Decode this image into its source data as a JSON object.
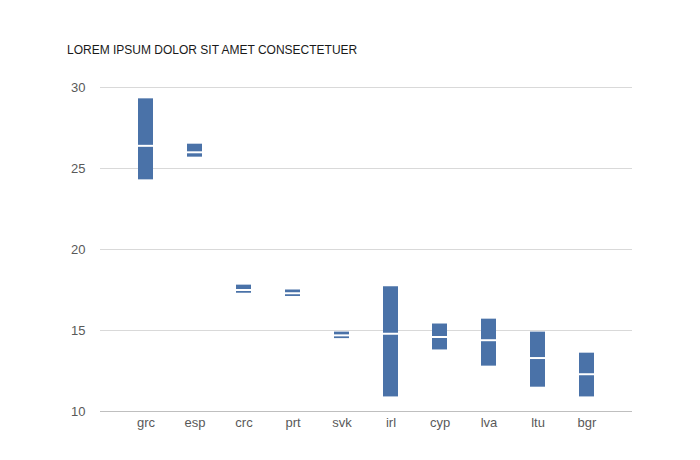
{
  "chart_data": {
    "type": "range",
    "title": "LOREM IPSUM DOLOR SIT AMET CONSECTETUER",
    "categories": [
      "grc",
      "esp",
      "crc",
      "prt",
      "svk",
      "irl",
      "cyp",
      "lva",
      "ltu",
      "bgr"
    ],
    "low": [
      24.3,
      25.7,
      17.3,
      17.1,
      14.5,
      10.9,
      13.8,
      12.8,
      11.5,
      10.9
    ],
    "high": [
      29.3,
      26.5,
      17.8,
      17.5,
      14.9,
      17.7,
      15.4,
      15.7,
      14.9,
      13.6
    ],
    "mid": [
      26.4,
      26.0,
      17.5,
      17.3,
      14.7,
      14.8,
      14.6,
      14.4,
      13.3,
      12.3
    ],
    "color": "#4a72a8",
    "ylim": [
      10,
      30
    ],
    "yticks": [
      10,
      15,
      20,
      25,
      30
    ],
    "grid": true
  }
}
